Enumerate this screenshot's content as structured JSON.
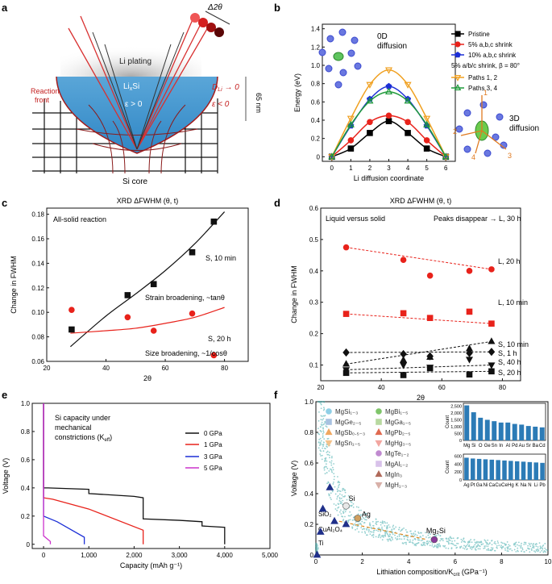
{
  "panels": {
    "a": {
      "label": "a",
      "texts": {
        "li_plating": "Li plating",
        "lixsi_base": "Li",
        "lixsi_sub": "x",
        "lixsi_tail": "Si",
        "eps_pos": "ε > 0",
        "eps_neg": "ε < 0",
        "dli_base": "D",
        "dli_sub": "Li",
        "dli_tail": " → 0",
        "reaction_1": "Reaction",
        "reaction_2": "front",
        "depth": "65 nm",
        "si_core": "Si core",
        "delta_2theta": "Δ2θ"
      }
    },
    "b": {
      "label": "b",
      "texts": {
        "zero_d_1": "0D",
        "zero_d_2": "diffusion",
        "three_d_1": "3D",
        "three_d_2": "diffusion",
        "legend_caption": "5% a/b/c shrink, β = 80°",
        "site_labels": [
          "1",
          "2",
          "3",
          "4"
        ]
      },
      "chart_data": {
        "type": "line",
        "xlabel": "Li diffusion coordinate",
        "ylabel": "Energy (eV)",
        "xlim": [
          -0.5,
          6.5
        ],
        "ylim": [
          -0.05,
          1.45
        ],
        "xticks": [
          "0",
          "1",
          "2",
          "3",
          "4",
          "5",
          "6"
        ],
        "yticks": [
          "0",
          "0.2",
          "0.4",
          "0.6",
          "0.8",
          "1.0",
          "1.2",
          "1.4"
        ],
        "series": [
          {
            "name": "Pristine",
            "color": "#000000",
            "marker": "square",
            "x": [
              0,
              1,
              2,
              3,
              4,
              5,
              6
            ],
            "y": [
              0,
              0.09,
              0.26,
              0.39,
              0.26,
              0.09,
              0
            ]
          },
          {
            "name": "5% a,b,c shrink",
            "color": "#e8221b",
            "marker": "circle",
            "x": [
              0,
              1,
              2,
              3,
              4,
              5,
              6
            ],
            "y": [
              0,
              0.18,
              0.38,
              0.45,
              0.38,
              0.18,
              0
            ]
          },
          {
            "name": "10% a,b,c shrink",
            "color": "#1c2fd6",
            "marker": "pentagon",
            "x": [
              0,
              1,
              2,
              3,
              4,
              5,
              6
            ],
            "y": [
              0,
              0.34,
              0.63,
              0.77,
              0.63,
              0.34,
              0
            ]
          },
          {
            "name": "Paths 1, 2",
            "color": "#f0a020",
            "marker": "tri-down",
            "x": [
              0,
              1,
              2,
              3,
              4,
              5,
              6
            ],
            "y": [
              0,
              0.42,
              0.79,
              0.95,
              0.79,
              0.42,
              0
            ]
          },
          {
            "name": "Paths 3, 4",
            "color": "#1f9a3a",
            "marker": "tri-up",
            "x": [
              0,
              1,
              2,
              3,
              4,
              5,
              6
            ],
            "y": [
              0,
              0.35,
              0.61,
              0.71,
              0.61,
              0.35,
              0
            ]
          }
        ]
      }
    },
    "c": {
      "label": "c",
      "texts": {
        "annot_all_solid": "All-solid reaction",
        "annot_s10min": "S, 10 min",
        "annot_strain": "Strain broadening, ~tanθ",
        "annot_s20h": "S, 20 h",
        "annot_size": "Size broadening, ~1/cosθ"
      },
      "chart_data": {
        "type": "scatter",
        "title": "XRD ΔFWHM (θ, t)",
        "xlabel": "2θ",
        "ylabel": "Change in FWHM",
        "xlim": [
          20,
          88
        ],
        "ylim": [
          0.06,
          0.185
        ],
        "xticks": [
          "20",
          "40",
          "60",
          "80"
        ],
        "yticks": [
          "0.06",
          "0.08",
          "0.10",
          "0.12",
          "0.14",
          "0.16",
          "0.18"
        ],
        "series": [
          {
            "name": "S, 10 min",
            "color": "#111111",
            "marker": "square",
            "x": [
              28.4,
              47.3,
              56.1,
              69.1,
              76.4
            ],
            "y": [
              0.086,
              0.114,
              0.123,
              0.149,
              0.174
            ]
          },
          {
            "name": "S, 20 h",
            "color": "#e8221b",
            "marker": "circle",
            "x": [
              28.4,
              47.3,
              56.1,
              69.1,
              76.4
            ],
            "y": [
              0.102,
              0.096,
              0.085,
              0.099,
              0.065
            ]
          }
        ],
        "fits": [
          {
            "name": "Strain broadening fit",
            "color": "#111111",
            "x": [
              28,
              40,
              50,
              60,
              70,
              80
            ],
            "y": [
              0.072,
              0.097,
              0.115,
              0.134,
              0.156,
              0.182
            ]
          },
          {
            "name": "Size broadening fit",
            "color": "#e8221b",
            "x": [
              28,
              40,
              50,
              60,
              70,
              80
            ],
            "y": [
              0.083,
              0.085,
              0.087,
              0.091,
              0.096,
              0.104
            ]
          }
        ]
      }
    },
    "d": {
      "label": "d",
      "texts": {
        "annot_liquid": "Liquid versus solid",
        "annot_peaks": "Peaks disappear → L, 30 h",
        "labels": [
          "L, 20 h",
          "L, 10 min",
          "S, 10 min",
          "S, 1 h",
          "S, 40 h",
          "S, 20 h"
        ]
      },
      "chart_data": {
        "type": "scatter",
        "title": "XRD ΔFWHM (θ, t)",
        "xlabel": "2θ",
        "ylabel": "Change in FWHM",
        "xlim": [
          20,
          86
        ],
        "ylim": [
          0.05,
          0.6
        ],
        "xticks": [
          "20",
          "40",
          "60",
          "80"
        ],
        "yticks": [
          "0.1",
          "0.2",
          "0.3",
          "0.4",
          "0.5",
          "0.6"
        ],
        "series": [
          {
            "name": "L, 20 h",
            "color": "#e8221b",
            "marker": "circle",
            "x": [
              28.4,
              47.3,
              56.1,
              69.1,
              76.4
            ],
            "y": [
              0.475,
              0.435,
              0.385,
              0.4,
              0.405
            ]
          },
          {
            "name": "L, 10 min",
            "color": "#e8221b",
            "marker": "square",
            "x": [
              28.4,
              47.3,
              56.1,
              69.1,
              76.4
            ],
            "y": [
              0.263,
              0.265,
              0.25,
              0.27,
              0.232
            ]
          },
          {
            "name": "S, 10 min",
            "color": "#111111",
            "marker": "tri-up",
            "x": [
              28.4,
              47.3,
              56.1,
              69.1,
              76.4
            ],
            "y": [
              0.103,
              0.116,
              0.125,
              0.152,
              0.175
            ]
          },
          {
            "name": "S, 1 h",
            "color": "#111111",
            "marker": "diamond",
            "x": [
              28.4,
              47.3,
              56.1,
              69.1,
              76.4
            ],
            "y": [
              0.14,
              0.135,
              0.128,
              0.138,
              0.142
            ]
          },
          {
            "name": "S, 40 h",
            "color": "#111111",
            "marker": "tri-down",
            "x": [
              28.4,
              47.3,
              56.1,
              69.1,
              76.4
            ],
            "y": [
              0.085,
              0.1,
              0.093,
              0.118,
              0.1
            ]
          },
          {
            "name": "S, 20 h",
            "color": "#111111",
            "marker": "square",
            "x": [
              28.4,
              47.3,
              56.1,
              69.1,
              76.4
            ],
            "y": [
              0.075,
              0.068,
              0.09,
              0.07,
              0.08
            ]
          }
        ]
      }
    },
    "e": {
      "label": "e",
      "texts": {
        "annot_1": "Si capacity under",
        "annot_2": "mechanical",
        "annot_3_base": "constrictions (K",
        "annot_3_sub": "eff",
        "annot_3_tail": ")"
      },
      "chart_data": {
        "type": "line",
        "xlabel": "Capacity (mAh g⁻¹)",
        "ylabel": "Voltage (V)",
        "xlim": [
          -250,
          5000
        ],
        "ylim": [
          -0.03,
          1.0
        ],
        "xticks": [
          "0",
          "1,000",
          "2,000",
          "3,000",
          "4,000",
          "5,000"
        ],
        "yticks": [
          "0",
          "0.2",
          "0.4",
          "0.6",
          "0.8",
          "1.0"
        ],
        "series": [
          {
            "name": "0 GPa",
            "color": "#111111",
            "x": [
              0,
              0,
              100,
              1000,
              1000,
              2000,
              2200,
              2200,
              3000,
              3500,
              3500,
              4000,
              4000
            ],
            "y": [
              1.0,
              0.4,
              0.4,
              0.39,
              0.36,
              0.34,
              0.33,
              0.18,
              0.17,
              0.16,
              0.13,
              0.12,
              0.0
            ]
          },
          {
            "name": "1 GPa",
            "color": "#e8221b",
            "x": [
              0,
              0,
              200,
              1000,
              2200,
              2200
            ],
            "y": [
              1.0,
              0.33,
              0.32,
              0.25,
              0.1,
              0.0
            ]
          },
          {
            "name": "3 GPa",
            "color": "#1c2fd6",
            "x": [
              0,
              0,
              300,
              900,
              900
            ],
            "y": [
              1.0,
              0.2,
              0.16,
              0.05,
              0.0
            ]
          },
          {
            "name": "5 GPa",
            "color": "#cc33cc",
            "x": [
              0,
              0,
              150,
              150
            ],
            "y": [
              1.0,
              0.06,
              0.02,
              0.0
            ]
          }
        ]
      }
    },
    "f": {
      "label": "f",
      "texts": {
        "labels_si": "Si",
        "labels_ag": "Ag",
        "labels_mg2si": "Mg₂Si",
        "labels_sio2": "SiO₂",
        "labels_cual2o4": "CuAl₂O₄",
        "labels_ti": "Ti"
      },
      "legend": [
        {
          "name": "MgSi₁₋₃",
          "color": "#8fcfe6",
          "marker": "circle"
        },
        {
          "name": "MgGe₂₋₅",
          "color": "#a8c2e0",
          "marker": "square"
        },
        {
          "name": "MgSb₀.₅₋₃",
          "color": "#f0a860",
          "marker": "tri-up"
        },
        {
          "name": "MgSn₁₋₅",
          "color": "#f3c28c",
          "marker": "tri-down"
        },
        {
          "name": "MgBi₁₋₅",
          "color": "#7fc56a",
          "marker": "circle"
        },
        {
          "name": "MgGa₁₋₅",
          "color": "#b8d9a0",
          "marker": "square"
        },
        {
          "name": "MgPb₂₋₅",
          "color": "#e06a50",
          "marker": "tri-up"
        },
        {
          "name": "MgHg₃₋₅",
          "color": "#f2a6a0",
          "marker": "tri-down"
        },
        {
          "name": "MgTe₁₋₂",
          "color": "#c08ad0",
          "marker": "circle"
        },
        {
          "name": "MgAl₁₋₂",
          "color": "#d8c2ea",
          "marker": "square"
        },
        {
          "name": "MgIn₃",
          "color": "#b06a5a",
          "marker": "tri-up"
        },
        {
          "name": "MgH₁₋₃",
          "color": "#d8b0a8",
          "marker": "tri-down"
        }
      ],
      "chart_data": {
        "type": "scatter",
        "xlabel": "Lithiation composition/K",
        "xlabel_sub": "crit",
        "xlabel_tail": " (GPa⁻¹)",
        "ylabel": "Voltage (V)",
        "xlim": [
          0,
          10
        ],
        "ylim": [
          0,
          1.0
        ],
        "xticks": [
          "0",
          "2",
          "4",
          "6",
          "8",
          "10"
        ],
        "yticks": [
          "0",
          "0.2",
          "0.4",
          "0.6",
          "0.8",
          "1.0"
        ],
        "cloud": {
          "color": "#3aa8a8",
          "description_curve_x": [
            0.1,
            0.3,
            0.6,
            1.0,
            1.5,
            2.0,
            3.0,
            4.0,
            5.0,
            6.0,
            8.0,
            10.0
          ],
          "description_curve_y": [
            1.0,
            0.9,
            0.55,
            0.38,
            0.28,
            0.22,
            0.16,
            0.12,
            0.1,
            0.08,
            0.06,
            0.05
          ]
        },
        "highlight_points": [
          {
            "name": "Si",
            "x": 1.3,
            "y": 0.32,
            "color": "#e8e8e8"
          },
          {
            "name": "Ag",
            "x": 1.8,
            "y": 0.24,
            "color": "#d0a060"
          },
          {
            "name": "Mg₂Si",
            "x": 5.1,
            "y": 0.1,
            "color": "#8a3a9a"
          }
        ],
        "inset_top": {
          "ylabel": "Count",
          "yticks": [
            "0",
            "500",
            "1,000",
            "1,500",
            "2,000",
            "2,500"
          ],
          "ylim": [
            0,
            2700
          ],
          "categories": [
            "Mg",
            "Si",
            "O",
            "Ge",
            "Sn",
            "In",
            "Al",
            "Pd",
            "Au",
            "Sr",
            "Ba",
            "Cd"
          ],
          "values": [
            2550,
            2050,
            1650,
            1500,
            1400,
            1300,
            1300,
            1200,
            1150,
            1050,
            1000,
            950
          ],
          "color": "#2c7bb6"
        },
        "inset_bottom": {
          "ylabel": "Count",
          "yticks": [
            "0",
            "200",
            "400",
            "600"
          ],
          "ylim": [
            0,
            650
          ],
          "categories": [
            "Ag",
            "Pt",
            "Ga",
            "Ni",
            "Ca",
            "Cu",
            "Ce",
            "Hg",
            "K",
            "Na",
            "N",
            "Li",
            "Pb"
          ],
          "values": [
            560,
            540,
            530,
            520,
            510,
            500,
            490,
            480,
            470,
            460,
            450,
            440,
            430
          ],
          "color": "#2c7bb6"
        }
      }
    }
  }
}
